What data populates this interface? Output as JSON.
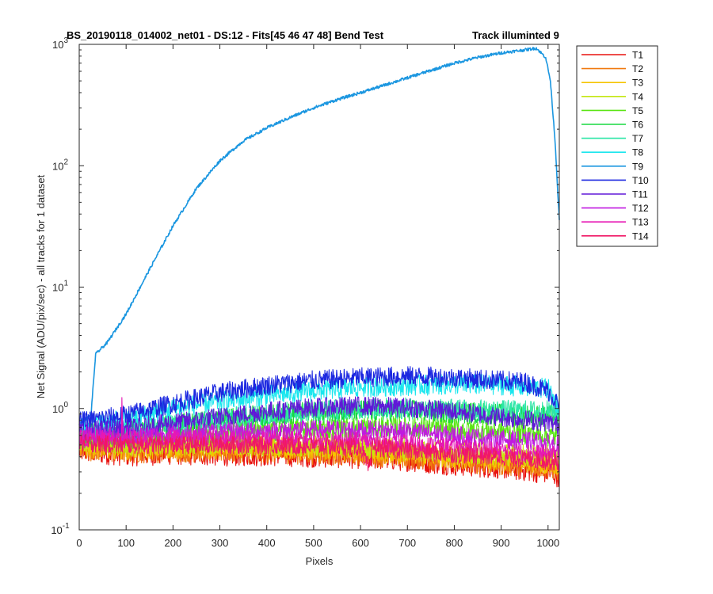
{
  "chart_data": {
    "type": "line",
    "title_left": "BS_20190118_014002_net01 - DS:12 - Fits[45  46  47  48]   Bend Test",
    "title_right": "Track illuminted 9",
    "xlabel": "Pixels",
    "ylabel": "Net Signal (ADU/pix/sec) - all tracks for 1 dataset",
    "xlim": [
      0,
      1024
    ],
    "ylim": [
      0.1,
      1000
    ],
    "yscale": "log",
    "grid": false,
    "legend_position": "outside-right-top",
    "x_ticks": [
      "0",
      "100",
      "200",
      "300",
      "400",
      "500",
      "600",
      "700",
      "800",
      "900",
      "1000"
    ],
    "y_ticks": [
      {
        "base": "10",
        "exp": "-1"
      },
      {
        "base": "10",
        "exp": "0"
      },
      {
        "base": "10",
        "exp": "1"
      },
      {
        "base": "10",
        "exp": "2"
      },
      {
        "base": "10",
        "exp": "3"
      }
    ],
    "series": [
      {
        "name": "T1",
        "color": "#e8120f",
        "values": [
          [
            0,
            0.45
          ],
          [
            100,
            0.42
          ],
          [
            200,
            0.43
          ],
          [
            300,
            0.42
          ],
          [
            400,
            0.42
          ],
          [
            500,
            0.41
          ],
          [
            600,
            0.4
          ],
          [
            700,
            0.38
          ],
          [
            800,
            0.35
          ],
          [
            900,
            0.33
          ],
          [
            1000,
            0.3
          ],
          [
            1024,
            0.28
          ]
        ]
      },
      {
        "name": "T2",
        "color": "#f07a10",
        "values": [
          [
            0,
            0.47
          ],
          [
            100,
            0.44
          ],
          [
            200,
            0.45
          ],
          [
            300,
            0.45
          ],
          [
            400,
            0.44
          ],
          [
            500,
            0.43
          ],
          [
            600,
            0.42
          ],
          [
            700,
            0.4
          ],
          [
            800,
            0.37
          ],
          [
            900,
            0.35
          ],
          [
            1000,
            0.33
          ],
          [
            1024,
            0.31
          ]
        ]
      },
      {
        "name": "T3",
        "color": "#f5c400",
        "values": [
          [
            0,
            0.49
          ],
          [
            100,
            0.47
          ],
          [
            200,
            0.48
          ],
          [
            300,
            0.48
          ],
          [
            400,
            0.47
          ],
          [
            500,
            0.46
          ],
          [
            600,
            0.45
          ],
          [
            700,
            0.43
          ],
          [
            800,
            0.4
          ],
          [
            900,
            0.38
          ],
          [
            1000,
            0.36
          ],
          [
            1024,
            0.35
          ]
        ]
      },
      {
        "name": "T4",
        "color": "#c4e612",
        "values": [
          [
            0,
            0.52
          ],
          [
            100,
            0.5
          ],
          [
            200,
            0.51
          ],
          [
            300,
            0.51
          ],
          [
            400,
            0.5
          ],
          [
            500,
            0.49
          ],
          [
            600,
            0.48
          ],
          [
            700,
            0.46
          ],
          [
            800,
            0.44
          ],
          [
            900,
            0.42
          ],
          [
            1000,
            0.4
          ],
          [
            1024,
            0.4
          ]
        ]
      },
      {
        "name": "T5",
        "color": "#5ce516",
        "values": [
          [
            0,
            0.57
          ],
          [
            100,
            0.57
          ],
          [
            200,
            0.6
          ],
          [
            300,
            0.63
          ],
          [
            400,
            0.66
          ],
          [
            500,
            0.68
          ],
          [
            600,
            0.7
          ],
          [
            700,
            0.7
          ],
          [
            800,
            0.68
          ],
          [
            900,
            0.65
          ],
          [
            1000,
            0.6
          ],
          [
            1024,
            0.58
          ]
        ]
      },
      {
        "name": "T6",
        "color": "#18d840",
        "values": [
          [
            0,
            0.62
          ],
          [
            100,
            0.65
          ],
          [
            200,
            0.72
          ],
          [
            300,
            0.8
          ],
          [
            400,
            0.88
          ],
          [
            500,
            0.93
          ],
          [
            600,
            0.96
          ],
          [
            700,
            0.96
          ],
          [
            800,
            0.93
          ],
          [
            900,
            0.9
          ],
          [
            1000,
            0.86
          ],
          [
            1024,
            0.85
          ]
        ]
      },
      {
        "name": "T7",
        "color": "#2ee6a8",
        "values": [
          [
            0,
            0.64
          ],
          [
            100,
            0.67
          ],
          [
            200,
            0.74
          ],
          [
            300,
            0.82
          ],
          [
            400,
            0.9
          ],
          [
            500,
            0.96
          ],
          [
            600,
            1.0
          ],
          [
            700,
            1.0
          ],
          [
            800,
            0.98
          ],
          [
            900,
            0.96
          ],
          [
            1000,
            0.95
          ],
          [
            1024,
            0.95
          ]
        ]
      },
      {
        "name": "T8",
        "color": "#1ae6ee",
        "values": [
          [
            0,
            0.72
          ],
          [
            100,
            0.8
          ],
          [
            200,
            1.0
          ],
          [
            300,
            1.15
          ],
          [
            400,
            1.28
          ],
          [
            500,
            1.4
          ],
          [
            600,
            1.5
          ],
          [
            700,
            1.55
          ],
          [
            800,
            1.58
          ],
          [
            900,
            1.57
          ],
          [
            1000,
            1.45
          ],
          [
            1024,
            1.0
          ]
        ]
      },
      {
        "name": "T9",
        "color": "#1a96e0",
        "values": [
          [
            0,
            0.75
          ],
          [
            25,
            0.88
          ],
          [
            35,
            2.8
          ],
          [
            60,
            3.5
          ],
          [
            100,
            6.0
          ],
          [
            150,
            14
          ],
          [
            200,
            32
          ],
          [
            250,
            65
          ],
          [
            300,
            110
          ],
          [
            350,
            160
          ],
          [
            400,
            205
          ],
          [
            450,
            250
          ],
          [
            500,
            300
          ],
          [
            550,
            350
          ],
          [
            600,
            400
          ],
          [
            650,
            460
          ],
          [
            700,
            530
          ],
          [
            750,
            610
          ],
          [
            800,
            700
          ],
          [
            850,
            780
          ],
          [
            900,
            850
          ],
          [
            950,
            900
          ],
          [
            975,
            930
          ],
          [
            995,
            780
          ],
          [
            1005,
            500
          ],
          [
            1015,
            160
          ],
          [
            1024,
            35
          ]
        ]
      },
      {
        "name": "T10",
        "color": "#1c28e0",
        "values": [
          [
            0,
            0.78
          ],
          [
            100,
            0.88
          ],
          [
            200,
            1.1
          ],
          [
            300,
            1.35
          ],
          [
            400,
            1.55
          ],
          [
            500,
            1.7
          ],
          [
            600,
            1.8
          ],
          [
            700,
            1.85
          ],
          [
            800,
            1.8
          ],
          [
            900,
            1.7
          ],
          [
            950,
            1.65
          ],
          [
            1000,
            1.4
          ],
          [
            1024,
            1.05
          ]
        ]
      },
      {
        "name": "T11",
        "color": "#6018d8",
        "values": [
          [
            0,
            0.66
          ],
          [
            100,
            0.68
          ],
          [
            200,
            0.76
          ],
          [
            300,
            0.85
          ],
          [
            400,
            0.95
          ],
          [
            500,
            1.02
          ],
          [
            600,
            1.05
          ],
          [
            700,
            1.02
          ],
          [
            800,
            0.95
          ],
          [
            900,
            0.85
          ],
          [
            1000,
            0.77
          ],
          [
            1024,
            0.72
          ]
        ]
      },
      {
        "name": "T12",
        "color": "#c01ae0",
        "values": [
          [
            0,
            0.6
          ],
          [
            100,
            0.6
          ],
          [
            200,
            0.62
          ],
          [
            300,
            0.64
          ],
          [
            400,
            0.66
          ],
          [
            500,
            0.67
          ],
          [
            600,
            0.67
          ],
          [
            700,
            0.65
          ],
          [
            800,
            0.6
          ],
          [
            900,
            0.56
          ],
          [
            1000,
            0.52
          ],
          [
            1024,
            0.5
          ]
        ]
      },
      {
        "name": "T13",
        "color": "#e618b4",
        "values": [
          [
            0,
            0.56
          ],
          [
            90,
            0.56
          ],
          [
            91,
            1.25
          ],
          [
            93,
            0.56
          ],
          [
            200,
            0.56
          ],
          [
            300,
            0.56
          ],
          [
            400,
            0.56
          ],
          [
            500,
            0.55
          ],
          [
            600,
            0.54
          ],
          [
            700,
            0.51
          ],
          [
            800,
            0.48
          ],
          [
            900,
            0.45
          ],
          [
            1000,
            0.42
          ],
          [
            1024,
            0.41
          ]
        ]
      },
      {
        "name": "T14",
        "color": "#f01866",
        "values": [
          [
            0,
            0.52
          ],
          [
            100,
            0.5
          ],
          [
            200,
            0.5
          ],
          [
            300,
            0.5
          ],
          [
            400,
            0.5
          ],
          [
            500,
            0.49
          ],
          [
            600,
            0.48
          ],
          [
            620,
            0.3
          ],
          [
            625,
            0.48
          ],
          [
            700,
            0.45
          ],
          [
            800,
            0.42
          ],
          [
            900,
            0.4
          ],
          [
            1000,
            0.37
          ],
          [
            1024,
            0.35
          ]
        ]
      }
    ]
  }
}
